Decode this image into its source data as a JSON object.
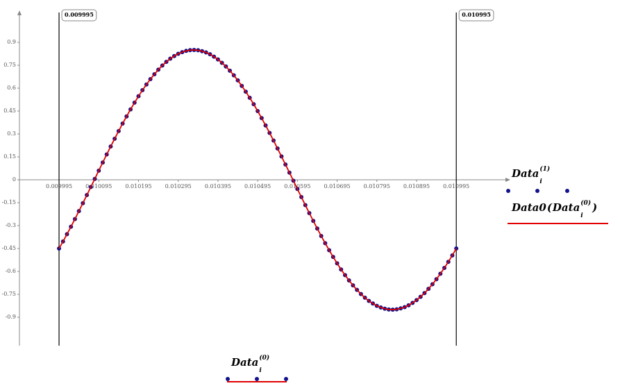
{
  "chart_data": {
    "type": "scatter",
    "x": [
      0.009995,
      0.010005,
      0.010015,
      0.010025,
      0.010035,
      0.010045,
      0.010055,
      0.010065,
      0.010075,
      0.010085,
      0.010095,
      0.010105,
      0.010115,
      0.010125,
      0.010135,
      0.010145,
      0.010155,
      0.010165,
      0.010175,
      0.010185,
      0.010195,
      0.010205,
      0.010215,
      0.010225,
      0.010235,
      0.010245,
      0.010255,
      0.010265,
      0.010275,
      0.010285,
      0.010295,
      0.010305,
      0.010315,
      0.010325,
      0.010335,
      0.010345,
      0.010355,
      0.010365,
      0.010375,
      0.010385,
      0.010395,
      0.010405,
      0.010415,
      0.010425,
      0.010435,
      0.010445,
      0.010455,
      0.010465,
      0.010475,
      0.010485,
      0.010495,
      0.010505,
      0.010515,
      0.010525,
      0.010535,
      0.010545,
      0.010555,
      0.010565,
      0.010575,
      0.010585,
      0.010595,
      0.010605,
      0.010615,
      0.010625,
      0.010635,
      0.010645,
      0.010655,
      0.010665,
      0.010675,
      0.010685,
      0.010695,
      0.010705,
      0.010715,
      0.010725,
      0.010735,
      0.010745,
      0.010755,
      0.010765,
      0.010775,
      0.010785,
      0.010795,
      0.010805,
      0.010815,
      0.010825,
      0.010835,
      0.010845,
      0.010855,
      0.010865,
      0.010875,
      0.010885,
      0.010895,
      0.010905,
      0.010915,
      0.010925,
      0.010935,
      0.010945,
      0.010955,
      0.010965,
      0.010975,
      0.010985,
      0.010995
    ],
    "series": [
      {
        "name": {
          "base": "Data",
          "sub": "i",
          "sup": "(1)"
        },
        "color": "#12128a",
        "mark": "dots",
        "values": [
          -0.45,
          -0.404,
          -0.356,
          -0.307,
          -0.257,
          -0.205,
          -0.153,
          -0.1,
          -0.047,
          0.006,
          0.06,
          0.113,
          0.166,
          0.218,
          0.269,
          0.319,
          0.368,
          0.415,
          0.461,
          0.505,
          0.547,
          0.587,
          0.624,
          0.659,
          0.691,
          0.721,
          0.748,
          0.772,
          0.793,
          0.81,
          0.825,
          0.836,
          0.844,
          0.849,
          0.85,
          0.848,
          0.842,
          0.834,
          0.822,
          0.806,
          0.788,
          0.766,
          0.742,
          0.714,
          0.684,
          0.651,
          0.615,
          0.577,
          0.537,
          0.495,
          0.45,
          0.404,
          0.356,
          0.307,
          0.257,
          0.205,
          0.153,
          0.1,
          0.047,
          -0.006,
          -0.06,
          -0.113,
          -0.166,
          -0.218,
          -0.269,
          -0.319,
          -0.368,
          -0.415,
          -0.461,
          -0.505,
          -0.547,
          -0.587,
          -0.624,
          -0.659,
          -0.691,
          -0.721,
          -0.748,
          -0.772,
          -0.793,
          -0.81,
          -0.825,
          -0.836,
          -0.844,
          -0.849,
          -0.85,
          -0.848,
          -0.842,
          -0.834,
          -0.822,
          -0.806,
          -0.788,
          -0.766,
          -0.742,
          -0.714,
          -0.684,
          -0.651,
          -0.615,
          -0.577,
          -0.537,
          -0.495,
          -0.45
        ]
      },
      {
        "name": {
          "func": "Data0",
          "open": "(",
          "base": "Data",
          "sub": "i",
          "sup": "(0)",
          "close": ")"
        },
        "color": "#e00000",
        "mark": "line",
        "values": [
          -0.45,
          -0.404,
          -0.356,
          -0.307,
          -0.257,
          -0.205,
          -0.153,
          -0.1,
          -0.047,
          0.006,
          0.06,
          0.113,
          0.166,
          0.218,
          0.269,
          0.319,
          0.368,
          0.415,
          0.461,
          0.505,
          0.547,
          0.587,
          0.624,
          0.659,
          0.691,
          0.721,
          0.748,
          0.772,
          0.793,
          0.81,
          0.825,
          0.836,
          0.844,
          0.849,
          0.85,
          0.848,
          0.842,
          0.834,
          0.822,
          0.806,
          0.788,
          0.766,
          0.742,
          0.714,
          0.684,
          0.651,
          0.615,
          0.577,
          0.537,
          0.495,
          0.45,
          0.404,
          0.356,
          0.307,
          0.257,
          0.205,
          0.153,
          0.1,
          0.047,
          -0.006,
          -0.06,
          -0.113,
          -0.166,
          -0.218,
          -0.269,
          -0.319,
          -0.368,
          -0.415,
          -0.461,
          -0.505,
          -0.547,
          -0.587,
          -0.624,
          -0.659,
          -0.691,
          -0.721,
          -0.748,
          -0.772,
          -0.793,
          -0.81,
          -0.825,
          -0.836,
          -0.844,
          -0.849,
          -0.85,
          -0.848,
          -0.842,
          -0.834,
          -0.822,
          -0.806,
          -0.788,
          -0.766,
          -0.742,
          -0.714,
          -0.684,
          -0.651,
          -0.615,
          -0.577,
          -0.537,
          -0.495,
          -0.45
        ]
      }
    ],
    "xlabel": {
      "base": "Data",
      "sub": "i",
      "sup": "(0)"
    },
    "xlim": [
      0.0098953,
      0.011131
    ],
    "ylim": [
      -1.086,
      1.109
    ],
    "xticks": [
      0.009995,
      0.010095,
      0.010195,
      0.010295,
      0.010395,
      0.010495,
      0.010595,
      0.010695,
      0.010795,
      0.010895,
      0.010995
    ],
    "yticks": [
      -0.9,
      -0.75,
      -0.6,
      -0.45,
      -0.3,
      -0.15,
      0,
      0.15,
      0.3,
      0.45,
      0.6,
      0.75,
      0.9
    ],
    "x_markers": [
      0.009995,
      0.010995
    ]
  }
}
